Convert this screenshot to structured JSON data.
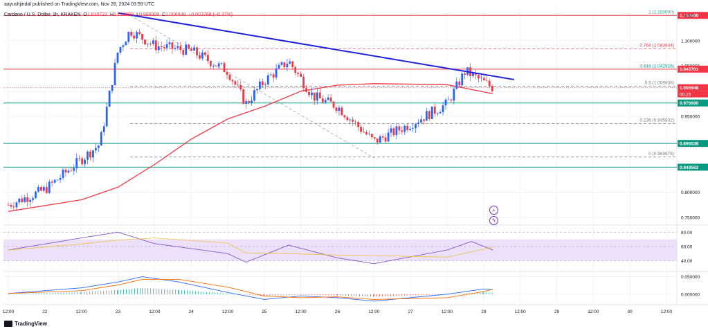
{
  "header": {
    "author_line": "aayushjindal published on TradingView.com, Nov 28, 2024 03:59 UTC",
    "symbol_line": "Cardano / U.S. Dollar, 1h, KRAKEN",
    "ohlc": {
      "o_label": "O",
      "o": "1.010722",
      "h_label": "H",
      "h": "1.014999",
      "l_label": "L",
      "l": "0.988908",
      "c_label": "C",
      "c": "1.006948",
      "change": "−0.003768 (−0.37%)"
    },
    "currency": "USD",
    "countdown": "00:26"
  },
  "footer": {
    "brand": "TradingView"
  },
  "icons": [
    "plus-circle-icon",
    "lightning-icon",
    "tradingview-logo-icon"
  ],
  "colors": {
    "up": "#2962ff",
    "down": "#f23645",
    "trendline": "#1f1fe0",
    "ma": "#f23645",
    "support": "#089981",
    "resistance": "#f23645",
    "rsi_band": "#ede0fa"
  },
  "chart_data": [
    {
      "type": "line",
      "title": "",
      "price_axis_labels": [
        "1.100000",
        "1.050000",
        "1.000000",
        "0.950000",
        "0.900000",
        "0.850000",
        "0.800000",
        "0.750000"
      ],
      "time_axis_labels": [
        "12:00",
        "22",
        "12:00",
        "23",
        "12:00",
        "24",
        "12:00",
        "25",
        "12:00",
        "26",
        "12:00",
        "27",
        "12:00",
        "28",
        "12:00",
        "29",
        "12:00",
        "30",
        "12:00"
      ],
      "ylim": [
        0.735,
        1.16
      ],
      "price_close_approx": [
        {
          "x": "2024-11-21 12:00",
          "y": 0.775
        },
        {
          "x": "2024-11-22 00:00",
          "y": 0.805
        },
        {
          "x": "2024-11-22 12:00",
          "y": 0.865
        },
        {
          "x": "2024-11-22 18:00",
          "y": 0.895
        },
        {
          "x": "2024-11-23 00:00",
          "y": 1.08
        },
        {
          "x": "2024-11-23 04:00",
          "y": 1.12
        },
        {
          "x": "2024-11-23 12:00",
          "y": 1.09
        },
        {
          "x": "2024-11-24 00:00",
          "y": 1.08
        },
        {
          "x": "2024-11-24 12:00",
          "y": 1.04
        },
        {
          "x": "2024-11-24 18:00",
          "y": 0.975
        },
        {
          "x": "2024-11-25 00:00",
          "y": 1.02
        },
        {
          "x": "2024-11-25 08:00",
          "y": 1.06
        },
        {
          "x": "2024-11-25 16:00",
          "y": 0.99
        },
        {
          "x": "2024-11-26 00:00",
          "y": 0.97
        },
        {
          "x": "2024-11-26 12:00",
          "y": 0.9
        },
        {
          "x": "2024-11-27 00:00",
          "y": 0.935
        },
        {
          "x": "2024-11-27 12:00",
          "y": 0.975
        },
        {
          "x": "2024-11-27 18:00",
          "y": 1.04
        },
        {
          "x": "2024-11-28 03:00",
          "y": 1.007
        }
      ],
      "moving_average_approx": [
        {
          "x": "2024-11-21 12:00",
          "y": 0.762
        },
        {
          "x": "2024-11-22 12:00",
          "y": 0.785
        },
        {
          "x": "2024-11-23 00:00",
          "y": 0.81
        },
        {
          "x": "2024-11-23 12:00",
          "y": 0.855
        },
        {
          "x": "2024-11-24 00:00",
          "y": 0.905
        },
        {
          "x": "2024-11-24 12:00",
          "y": 0.945
        },
        {
          "x": "2024-11-25 00:00",
          "y": 0.97
        },
        {
          "x": "2024-11-25 12:00",
          "y": 1.0
        },
        {
          "x": "2024-11-26 00:00",
          "y": 1.012
        },
        {
          "x": "2024-11-26 12:00",
          "y": 1.015
        },
        {
          "x": "2024-11-27 12:00",
          "y": 1.013
        },
        {
          "x": "2024-11-28 03:00",
          "y": 0.995
        }
      ],
      "trendline": [
        {
          "x": "2024-11-23 00:00",
          "y": 1.155
        },
        {
          "x": "2024-11-28 10:00",
          "y": 1.023
        }
      ],
      "fib_dashed_line": [
        {
          "x": "2024-11-23 04:00",
          "y": 1.15
        },
        {
          "x": "2024-11-26 12:00",
          "y": 0.868
        }
      ],
      "horizontal_levels": [
        {
          "label": "1.150000",
          "price": 1.15,
          "color": "#f23645",
          "style": "solid"
        },
        {
          "label": "1.043701",
          "price": 1.0437,
          "color": "#f23645",
          "style": "solid"
        },
        {
          "label": "0.976690",
          "price": 0.97669,
          "color": "#089981",
          "style": "solid"
        },
        {
          "label": "0.896538",
          "price": 0.896538,
          "color": "#089981",
          "style": "solid"
        },
        {
          "label": "0.849562",
          "price": 0.849562,
          "color": "#089981",
          "style": "solid"
        },
        {
          "label": "1.006948",
          "price": 1.006948,
          "color": "#f23645",
          "style": "current"
        }
      ],
      "fibonacci": [
        {
          "ratio": "1",
          "label": "1 (1.150000)",
          "price": 1.15
        },
        {
          "ratio": "0.764",
          "label": "0.764 (1.083844)",
          "price": 1.083844
        },
        {
          "ratio": "0.618",
          "label": "0.618 (1.042916)",
          "price": 1.042916
        },
        {
          "ratio": "0.5",
          "label": "0.5 (1.009838)",
          "price": 1.009838
        },
        {
          "ratio": "0.236",
          "label": "0.236 (0.935832)",
          "price": 0.935832
        },
        {
          "ratio": "0",
          "label": "0 (0.869676)",
          "price": 0.869676
        }
      ],
      "grid": true
    },
    {
      "type": "line",
      "title": "",
      "axis_labels": [
        "80.00",
        "60.00",
        "40.00"
      ],
      "ylim": [
        25,
        90
      ],
      "band": [
        40,
        70
      ],
      "rsi_approx": [
        {
          "x": "2024-11-21 12:00",
          "y": 55
        },
        {
          "x": "2024-11-22 12:00",
          "y": 72
        },
        {
          "x": "2024-11-23 00:00",
          "y": 80
        },
        {
          "x": "2024-11-23 12:00",
          "y": 64
        },
        {
          "x": "2024-11-24 12:00",
          "y": 50
        },
        {
          "x": "2024-11-24 18:00",
          "y": 38
        },
        {
          "x": "2024-11-25 08:00",
          "y": 62
        },
        {
          "x": "2024-11-26 00:00",
          "y": 44
        },
        {
          "x": "2024-11-26 12:00",
          "y": 36
        },
        {
          "x": "2024-11-27 12:00",
          "y": 55
        },
        {
          "x": "2024-11-27 20:00",
          "y": 67
        },
        {
          "x": "2024-11-28 03:00",
          "y": 55
        }
      ]
    },
    {
      "type": "line",
      "title": "",
      "axis_labels": [
        "0.050000",
        "0.000000"
      ],
      "ylim": [
        -0.03,
        0.065
      ],
      "macd_approx": [
        {
          "x": "2024-11-21 12:00",
          "y": 0.002
        },
        {
          "x": "2024-11-22 12:00",
          "y": 0.018
        },
        {
          "x": "2024-11-23 00:00",
          "y": 0.035
        },
        {
          "x": "2024-11-23 08:00",
          "y": 0.05
        },
        {
          "x": "2024-11-23 20:00",
          "y": 0.035
        },
        {
          "x": "2024-11-24 12:00",
          "y": 0.005
        },
        {
          "x": "2024-11-25 00:00",
          "y": -0.015
        },
        {
          "x": "2024-11-25 12:00",
          "y": -0.005
        },
        {
          "x": "2024-11-26 00:00",
          "y": -0.01
        },
        {
          "x": "2024-11-26 12:00",
          "y": -0.02
        },
        {
          "x": "2024-11-27 12:00",
          "y": 0.0
        },
        {
          "x": "2024-11-28 00:00",
          "y": 0.015
        },
        {
          "x": "2024-11-28 03:00",
          "y": 0.013
        }
      ]
    }
  ]
}
